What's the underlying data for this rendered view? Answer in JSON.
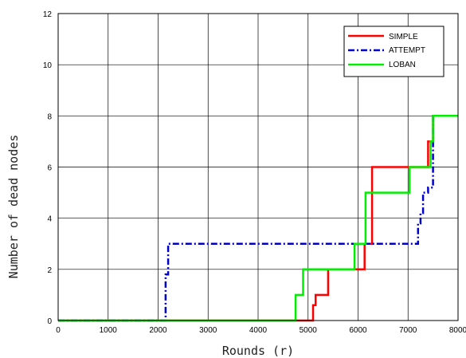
{
  "chart_data": {
    "type": "line",
    "title": "",
    "xlabel": "Rounds (r)",
    "ylabel": "Number of dead nodes",
    "xlim": [
      0,
      8000
    ],
    "ylim": [
      0,
      12
    ],
    "xticks": [
      0,
      1000,
      2000,
      3000,
      4000,
      5000,
      6000,
      7000,
      8000
    ],
    "yticks": [
      0,
      2,
      4,
      6,
      8,
      10,
      12
    ],
    "xtick_labels": [
      "0",
      "1000",
      "2000",
      "3000",
      "4000",
      "5000",
      "6000",
      "7000",
      "8000"
    ],
    "ytick_labels": [
      "0",
      "2",
      "4",
      "6",
      "8",
      "10",
      "12"
    ],
    "grid": true,
    "legend_position": "top-right",
    "series": [
      {
        "name": "SIMPLE",
        "color": "#ff0000",
        "dash": "solid",
        "x": [
          0,
          5100,
          5100,
          5150,
          5150,
          5400,
          5400,
          6130,
          6130,
          6280,
          6280,
          7400,
          7400,
          7500,
          7500,
          8000
        ],
        "y": [
          0,
          0,
          0.6,
          0.6,
          1,
          1,
          2,
          2,
          3,
          3,
          6,
          6,
          7,
          7,
          8,
          8
        ]
      },
      {
        "name": "ATTEMPT",
        "color": "#0000cc",
        "dash": "dashdot",
        "x": [
          0,
          2150,
          2150,
          2200,
          2200,
          7200,
          7200,
          7250,
          7250,
          7300,
          7300,
          7400,
          7400,
          7500,
          7500,
          8000
        ],
        "y": [
          0,
          0,
          1.8,
          1.8,
          3,
          3,
          3.8,
          3.8,
          4.2,
          4.2,
          5,
          5,
          5.2,
          5.2,
          8,
          8
        ]
      },
      {
        "name": "LOBAN",
        "color": "#00ee00",
        "dash": "solid",
        "x": [
          0,
          4750,
          4750,
          4900,
          4900,
          5930,
          5930,
          6150,
          6150,
          7030,
          7030,
          7450,
          7450,
          7500,
          7500,
          8000
        ],
        "y": [
          0,
          0,
          1,
          1,
          2,
          2,
          3,
          3,
          5,
          5,
          6,
          6,
          7,
          7,
          8,
          8
        ]
      }
    ]
  }
}
